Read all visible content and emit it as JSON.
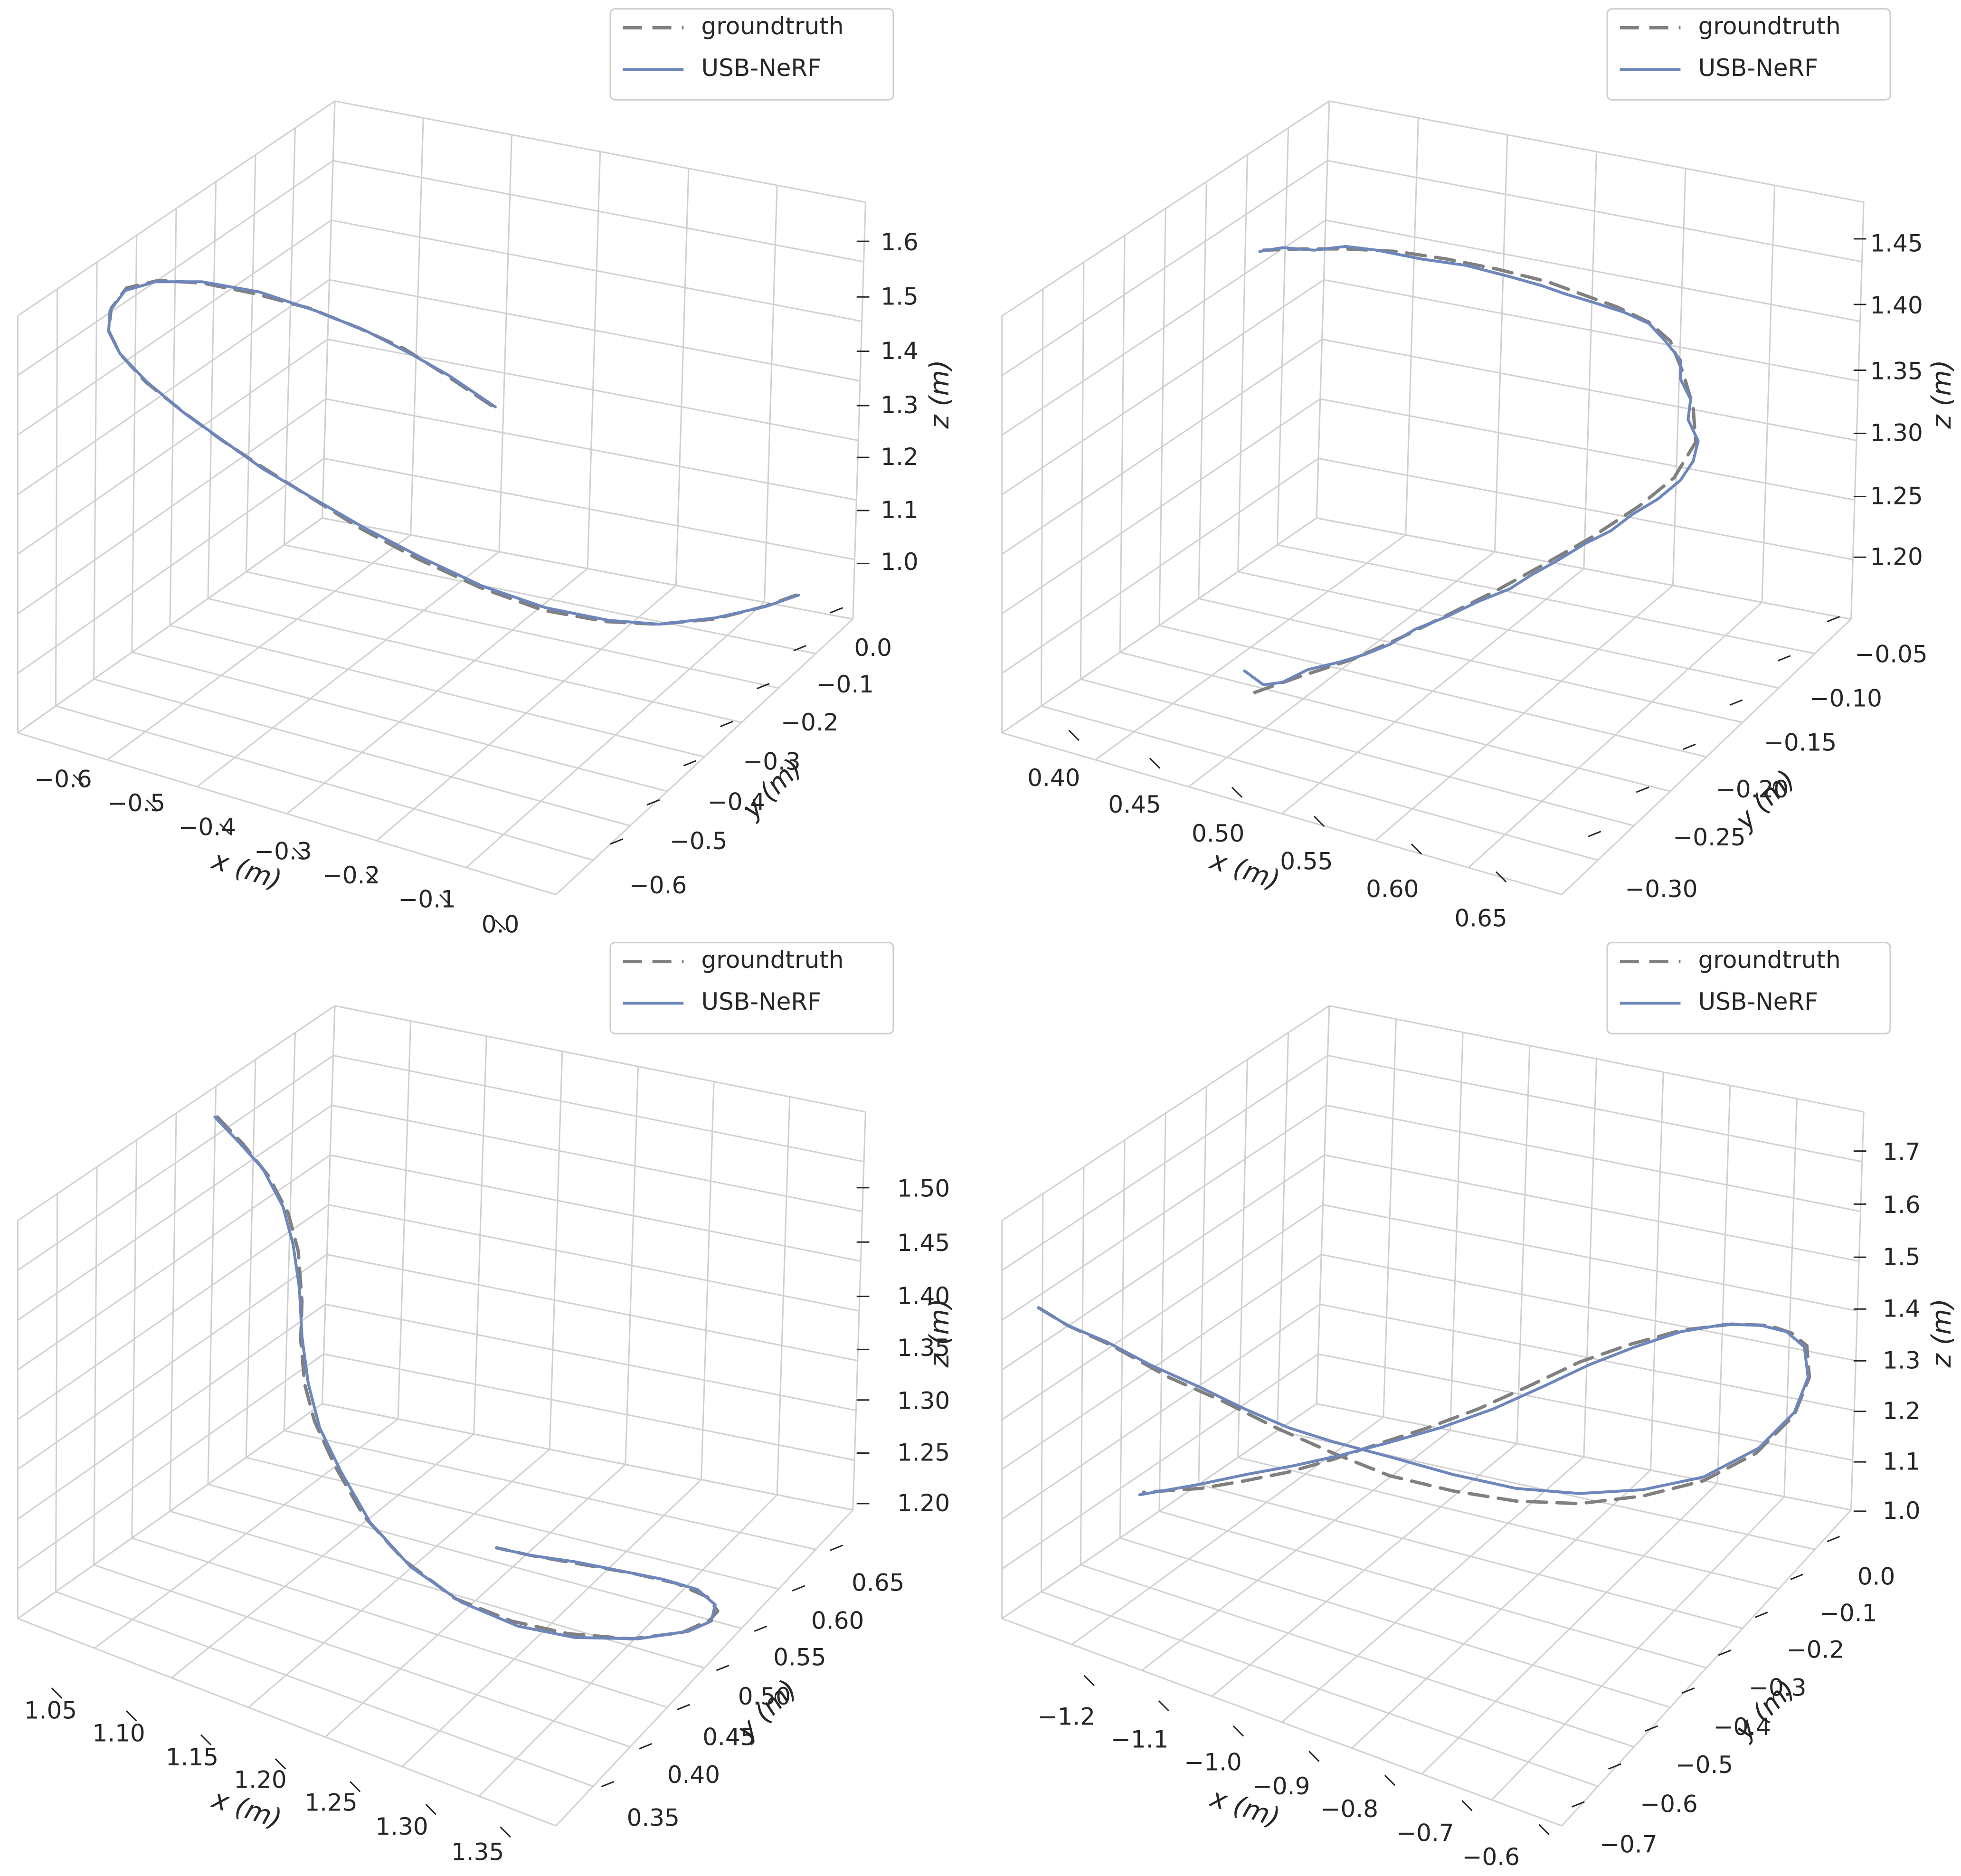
{
  "chart_data": [
    {
      "type": "line",
      "panel": "top-left",
      "legend": {
        "entries": [
          "groundtruth",
          "USB-NeRF"
        ],
        "placement": "top-right"
      },
      "axes": {
        "x": {
          "label": "x (m)",
          "ticks": [
            "−0.6",
            "−0.5",
            "−0.4",
            "−0.3",
            "−0.2",
            "−0.1",
            "0.0"
          ]
        },
        "y": {
          "label": "y (m)",
          "ticks": [
            "0.0",
            "−0.1",
            "−0.2",
            "−0.3",
            "−0.4",
            "−0.5",
            "−0.6"
          ]
        },
        "z": {
          "label": "z (m)",
          "ticks": [
            "1.6",
            "1.5",
            "1.4",
            "1.3",
            "1.2",
            "1.1",
            "1.0"
          ]
        }
      },
      "grid": true,
      "series": [
        {
          "name": "groundtruth",
          "style": "dashed",
          "color": "#808080"
        },
        {
          "name": "USB-NeRF",
          "style": "solid",
          "color": "#6d86bb"
        }
      ]
    },
    {
      "type": "line",
      "panel": "top-right",
      "legend": {
        "entries": [
          "groundtruth",
          "USB-NeRF"
        ],
        "placement": "top-right"
      },
      "axes": {
        "x": {
          "label": "x (m)",
          "ticks": [
            "0.40",
            "0.45",
            "0.50",
            "0.55",
            "0.60",
            "0.65"
          ]
        },
        "y": {
          "label": "y (m)",
          "ticks": [
            "−0.05",
            "−0.10",
            "−0.15",
            "−0.20",
            "−0.25",
            "−0.30"
          ]
        },
        "z": {
          "label": "z (m)",
          "ticks": [
            "1.45",
            "1.40",
            "1.35",
            "1.30",
            "1.25",
            "1.20"
          ]
        }
      },
      "grid": true,
      "series": [
        {
          "name": "groundtruth",
          "style": "dashed",
          "color": "#808080"
        },
        {
          "name": "USB-NeRF",
          "style": "solid",
          "color": "#6d86bb"
        }
      ]
    },
    {
      "type": "line",
      "panel": "bottom-left",
      "legend": {
        "entries": [
          "groundtruth",
          "USB-NeRF"
        ],
        "placement": "top-right"
      },
      "axes": {
        "x": {
          "label": "x (m)",
          "ticks": [
            "1.05",
            "1.10",
            "1.15",
            "1.20",
            "1.25",
            "1.30",
            "1.35"
          ]
        },
        "y": {
          "label": "y (m)",
          "ticks": [
            "0.65",
            "0.60",
            "0.55",
            "0.50",
            "0.45",
            "0.40",
            "0.35"
          ]
        },
        "z": {
          "label": "z (m)",
          "ticks": [
            "1.50",
            "1.45",
            "1.40",
            "1.35",
            "1.30",
            "1.25",
            "1.20"
          ]
        }
      },
      "grid": true,
      "series": [
        {
          "name": "groundtruth",
          "style": "dashed",
          "color": "#808080"
        },
        {
          "name": "USB-NeRF",
          "style": "solid",
          "color": "#6d86bb"
        }
      ]
    },
    {
      "type": "line",
      "panel": "bottom-right",
      "legend": {
        "entries": [
          "groundtruth",
          "USB-NeRF"
        ],
        "placement": "top-right"
      },
      "axes": {
        "x": {
          "label": "x (m)",
          "ticks": [
            "−1.2",
            "−1.1",
            "−1.0",
            "−0.9",
            "−0.8",
            "−0.7",
            "−0.6"
          ]
        },
        "y": {
          "label": "y (m)",
          "ticks": [
            "0.0",
            "−0.1",
            "−0.2",
            "−0.3",
            "−0.4",
            "−0.5",
            "−0.6",
            "−0.7"
          ]
        },
        "z": {
          "label": "z (m)",
          "ticks": [
            "1.7",
            "1.6",
            "1.5",
            "1.4",
            "1.3",
            "1.2",
            "1.1",
            "1.0"
          ]
        }
      },
      "grid": true,
      "series": [
        {
          "name": "groundtruth",
          "style": "dashed",
          "color": "#808080"
        },
        {
          "name": "USB-NeRF",
          "style": "solid",
          "color": "#6d86bb"
        }
      ]
    }
  ]
}
